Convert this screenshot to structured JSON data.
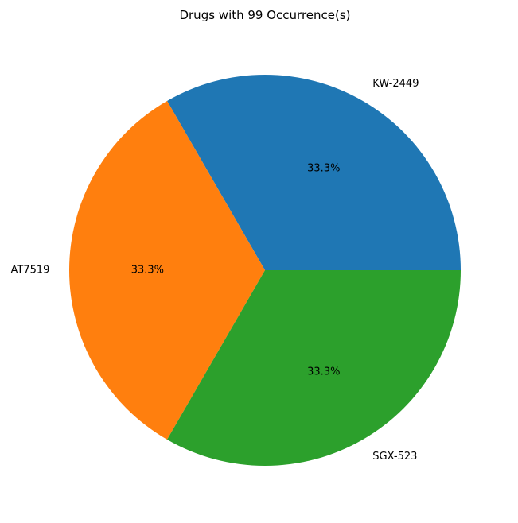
{
  "chart_data": {
    "type": "pie",
    "title": "Drugs with 99 Occurrence(s)",
    "categories": [
      "KW-2449",
      "AT7519",
      "SGX-523"
    ],
    "values": [
      99,
      99,
      99
    ],
    "percent_labels": [
      "33.3%",
      "33.3%",
      "33.3%"
    ],
    "colors": [
      "#1f77b4",
      "#ff7f0e",
      "#2ca02c"
    ],
    "start_angle_deg": 0,
    "direction": "counterclockwise"
  }
}
